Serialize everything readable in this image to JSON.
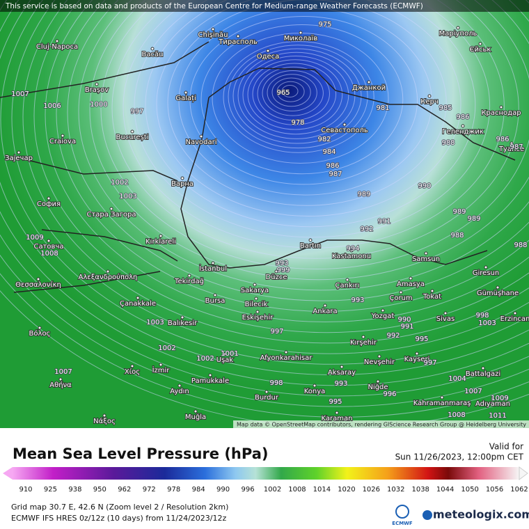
{
  "header": {
    "notice": "This service is based on data and products of the European Centre for Medium-range Weather Forecasts (ECMWF)"
  },
  "map": {
    "places": [
      "Chișinău",
      "Миколаїв",
      "Тирасполь",
      "Одеса",
      "Cluj-Napoca",
      "Bacău",
      "Brașov",
      "Galați",
      "Джанкой",
      "Маріуполь",
      "Єйськ",
      "Керч",
      "Краснодар",
      "Геленджик",
      "Туапсе",
      "Севастополь",
      "București",
      "Craiova",
      "Navodari",
      "Варна",
      "София",
      "Стара Загора",
      "Kırklareli",
      "Bartın",
      "Kastamonu",
      "Samsun",
      "Giresun",
      "İstanbul",
      "Tekirdağ",
      "Sakarya",
      "Düzce",
      "Çankırı",
      "Amasya",
      "Çorum",
      "Tokat",
      "Gümüşhane",
      "Bursa",
      "Bilecik",
      "Eskişehir",
      "Ankara",
      "Yozgat",
      "Sivas",
      "Erzincan",
      "Çanakkale",
      "Balıkesir",
      "Kırşehir",
      "Kayseri",
      "Nevşehir",
      "Afyonkarahisar",
      "Uşak",
      "İzmir",
      "Χίος",
      "Aksaray",
      "Niğde",
      "Konya",
      "Aydın",
      "Pamukkale",
      "Burdur",
      "Karaman",
      "Kahramanmaraş",
      "Adıyaman",
      "Battalgazi",
      "Muğla",
      "Θεσσαλονίκη",
      "Αλεξανδρούπολη",
      "Βόλος",
      "Αθήνα",
      "Νάξος",
      "Сатовча",
      "Зајечар"
    ],
    "isobars": [
      965,
      975,
      978,
      981,
      982,
      984,
      986,
      987,
      989,
      990,
      991,
      992,
      985,
      986,
      988,
      987,
      986,
      989,
      989,
      988,
      988,
      994,
      993,
      997,
      993,
      990,
      991,
      992,
      995,
      997,
      1002,
      1003,
      1007,
      1006,
      1000,
      997,
      1008,
      1009,
      1003,
      1002,
      1002,
      1001,
      998,
      993,
      995,
      996,
      1004,
      1007,
      1008,
      1009,
      1011,
      998,
      1003,
      1007,
      999
    ],
    "attribution": "Map data © OpenStreetMap contributors, rendering GIScience Research Group @ Heidelberg University"
  },
  "legend": {
    "title": "Mean Sea Level Pressure (hPa)",
    "valid_label": "Valid for",
    "valid_time": "Sun 11/26/2023, 12:00pm CET",
    "scale": [
      910,
      925,
      938,
      950,
      962,
      972,
      978,
      984,
      990,
      996,
      1002,
      1008,
      1014,
      1020,
      1026,
      1032,
      1038,
      1044,
      1050,
      1056,
      1062
    ],
    "grid_info": "Grid map 30.7 E, 42.6 N (Zoom level 2 / Resolution 2km)",
    "model_info": "ECMWF IFS HRES 0z/12z (10 days) from 11/24/2023/12z",
    "ecmwf_logo": "ECMWF",
    "brand": "meteologix.com"
  }
}
